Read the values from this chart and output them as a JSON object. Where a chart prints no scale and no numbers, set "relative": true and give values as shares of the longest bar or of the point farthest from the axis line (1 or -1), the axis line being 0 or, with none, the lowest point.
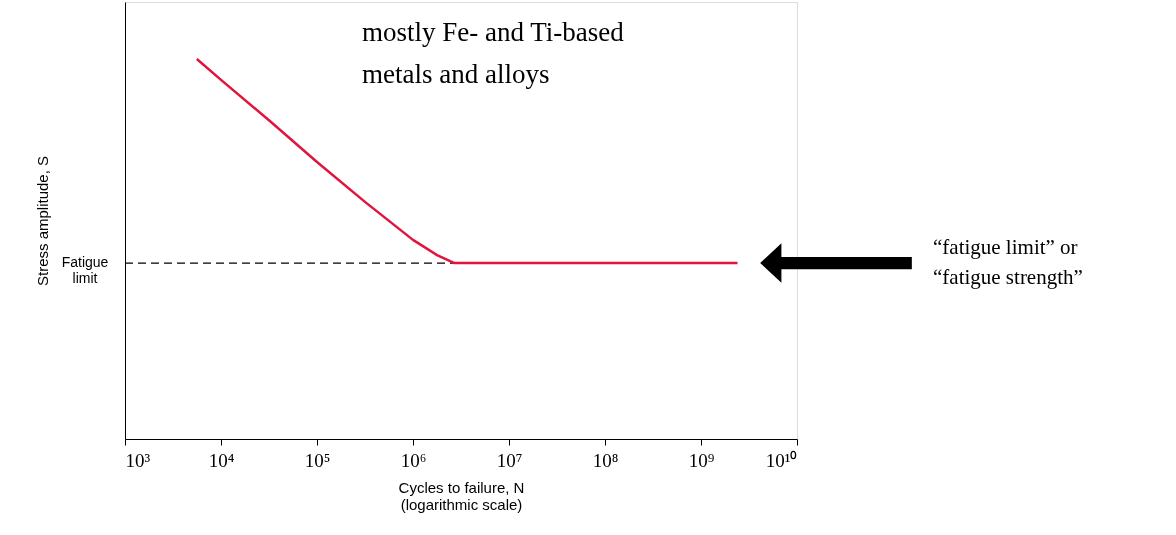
{
  "chart_data": {
    "type": "line",
    "relative": true,
    "xlabel": "Cycles to failure, N\n(logarithmic scale)",
    "ylabel": "Stress amplitude, S",
    "log": "x",
    "xlim": [
      1000,
      10000000000
    ],
    "xticks": [
      {
        "value": 1000,
        "label": "10³"
      },
      {
        "value": 10000,
        "label": "10⁴"
      },
      {
        "value": 100000,
        "label": "10⁵"
      },
      {
        "value": 1000000,
        "label": "10⁶"
      },
      {
        "value": 10000000,
        "label": "10⁷"
      },
      {
        "value": 100000000,
        "label": "10⁸"
      },
      {
        "value": 1000000000,
        "label": "10⁹"
      },
      {
        "value": 10000000000,
        "label": "10¹⁰"
      }
    ],
    "x": [
      5600,
      10000,
      31600,
      100000,
      316000,
      1000000,
      1780000,
      2700000,
      2400000000
    ],
    "series": [
      {
        "color": "#e0143c",
        "values": [
          1,
          0.945,
          0.839,
          0.729,
          0.624,
          0.524,
          0.484,
          0.463,
          0.463
        ]
      }
    ],
    "ref_lines": [
      {
        "axis": "y",
        "value": 0.463,
        "label": "Fatigue limit",
        "line_style": "dashed",
        "color": "#000000"
      }
    ],
    "grid": false,
    "marker": "none",
    "line_style": "solid",
    "annotations": [
      "mostly Fe- and Ti-based metals and alloys",
      "“fatigue limit” or “fatigue strength”"
    ]
  }
}
